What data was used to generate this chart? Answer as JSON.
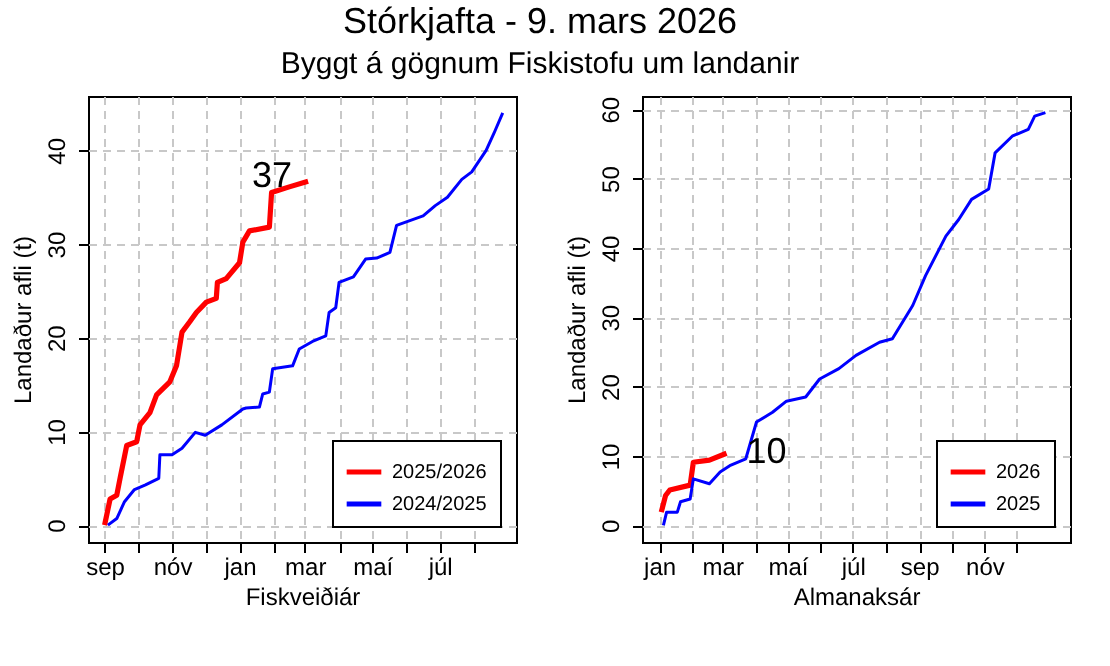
{
  "chart_data": [
    {
      "type": "line",
      "title": "Stórkjafta -  9. mars 2026",
      "subtitle": "Byggt á gögnum Fiskistofu um landanir",
      "xlabel": "Fiskveiðiár",
      "ylabel": "Landaður afli (t)",
      "xlim": [
        "2025-08-17",
        "2026-09-08"
      ],
      "xticks": [
        {
          "value": "2025-09-01",
          "label": "sep"
        },
        {
          "value": "2025-10-01",
          "label": null
        },
        {
          "value": "2025-11-01",
          "label": "nóv"
        },
        {
          "value": "2025-12-01",
          "label": null
        },
        {
          "value": "2026-01-01",
          "label": "jan"
        },
        {
          "value": "2026-02-01",
          "label": null
        },
        {
          "value": "2026-03-01",
          "label": "mar"
        },
        {
          "value": "2026-04-01",
          "label": null
        },
        {
          "value": "2026-05-01",
          "label": "maí"
        },
        {
          "value": "2026-06-01",
          "label": null
        },
        {
          "value": "2026-07-01",
          "label": "júl"
        },
        {
          "value": "2026-08-01",
          "label": null
        }
      ],
      "ylim": [
        -1.8,
        45.8
      ],
      "yticks": [
        0,
        10,
        20,
        30,
        40
      ],
      "grid": true,
      "legend": "bottom right",
      "marker": "none",
      "series": [
        {
          "name": "2025/2026",
          "color": "#ff0000",
          "x": [
            "2025-09-01",
            "2025-09-06",
            "2025-09-12",
            "2025-09-15",
            "2025-09-21",
            "2025-09-30",
            "2025-10-03",
            "2025-10-12",
            "2025-10-18",
            "2025-10-30",
            "2025-11-05",
            "2025-11-10",
            "2025-11-17",
            "2025-11-23",
            "2025-12-02",
            "2025-12-11",
            "2025-12-12",
            "2025-12-20",
            "2026-01-01",
            "2026-01-04",
            "2026-01-10",
            "2026-01-28",
            "2026-01-30",
            "2026-02-15",
            "2026-03-04"
          ],
          "values": [
            0,
            2.8,
            3.2,
            5,
            8.5,
            8.9,
            10.7,
            12,
            13.9,
            15.3,
            17,
            20.6,
            21.7,
            22.7,
            23.8,
            24.2,
            25.9,
            26.3,
            28,
            30.2,
            31.4,
            31.8,
            35.5,
            36.1,
            36.7
          ]
        },
        {
          "name": "2024/2025",
          "color": "#0000ff",
          "x": [
            "2025-09-04",
            "2025-09-12",
            "2025-09-19",
            "2025-09-28",
            "2025-10-08",
            "2025-10-20",
            "2025-10-21",
            "2025-11-01",
            "2025-11-10",
            "2025-11-22",
            "2025-12-01",
            "2025-12-16",
            "2026-01-04",
            "2026-01-07",
            "2026-01-19",
            "2026-01-22",
            "2026-01-28",
            "2026-01-31",
            "2026-02-18",
            "2026-02-24",
            "2026-03-08",
            "2026-03-20",
            "2026-03-23",
            "2026-03-29",
            "2026-04-01",
            "2026-04-14",
            "2026-04-25",
            "2026-05-05",
            "2026-05-17",
            "2026-05-23",
            "2026-06-16",
            "2026-06-27",
            "2026-07-08",
            "2026-07-21",
            "2026-07-30",
            "2026-08-12",
            "2026-08-19",
            "2026-08-27"
          ],
          "values": [
            0,
            0.7,
            2.5,
            3.8,
            4.3,
            5,
            7.5,
            7.5,
            8.2,
            9.9,
            9.6,
            10.7,
            12.4,
            12.5,
            12.6,
            14,
            14.2,
            16.7,
            17,
            18.8,
            19.6,
            20.2,
            22.7,
            23.2,
            25.9,
            26.5,
            28.4,
            28.5,
            29.1,
            32,
            33,
            34.1,
            35,
            36.9,
            37.7,
            40,
            41.8,
            44
          ]
        }
      ],
      "annotations": [
        {
          "text": "37",
          "x": "2026-03-04",
          "y": 36.7
        }
      ]
    },
    {
      "type": "line",
      "xlabel": "Almanaksár",
      "ylabel": "Landaður afli (t)",
      "xlim": [
        "2025-12-16",
        "2027-01-20"
      ],
      "xticks": [
        {
          "value": "2026-01-01",
          "label": "jan"
        },
        {
          "value": "2026-02-01",
          "label": null
        },
        {
          "value": "2026-03-01",
          "label": "mar"
        },
        {
          "value": "2026-04-01",
          "label": null
        },
        {
          "value": "2026-05-01",
          "label": "maí"
        },
        {
          "value": "2026-06-01",
          "label": null
        },
        {
          "value": "2026-07-01",
          "label": "júl"
        },
        {
          "value": "2026-08-01",
          "label": null
        },
        {
          "value": "2026-09-01",
          "label": "sep"
        },
        {
          "value": "2026-10-01",
          "label": null
        },
        {
          "value": "2026-11-01",
          "label": "nóv"
        },
        {
          "value": "2026-12-01",
          "label": null
        }
      ],
      "ylim": [
        -2.4,
        61.9
      ],
      "yticks": [
        0,
        10,
        20,
        30,
        40,
        50,
        60
      ],
      "grid": true,
      "legend": "bottom right",
      "marker": "none",
      "series": [
        {
          "name": "2026",
          "color": "#ff0000",
          "x": [
            "2026-01-03",
            "2026-01-07",
            "2026-01-11",
            "2026-01-30",
            "2026-02-02",
            "2026-02-17",
            "2026-03-05"
          ],
          "values": [
            1.9,
            4.3,
            5.1,
            5.8,
            9.1,
            9.4,
            10.4
          ]
        },
        {
          "name": "2025",
          "color": "#0000ff",
          "x": [
            "2026-01-05",
            "2026-01-08",
            "2026-01-18",
            "2026-01-21",
            "2026-01-30",
            "2026-02-02",
            "2026-02-17",
            "2026-02-27",
            "2026-03-08",
            "2026-03-23",
            "2026-04-02",
            "2026-04-17",
            "2026-04-30",
            "2026-05-18",
            "2026-05-31",
            "2026-06-18",
            "2026-07-04",
            "2026-07-26",
            "2026-08-07",
            "2026-08-26",
            "2026-09-07",
            "2026-09-26",
            "2026-10-08",
            "2026-10-20",
            "2026-11-05",
            "2026-11-11",
            "2026-11-27",
            "2026-12-12",
            "2026-12-18",
            "2026-12-28"
          ],
          "values": [
            0,
            1.9,
            1.9,
            3.4,
            3.8,
            6.7,
            6,
            7.7,
            8.6,
            9.6,
            14.9,
            16.3,
            17.9,
            18.5,
            21.1,
            22.6,
            24.5,
            26.4,
            26.9,
            31.7,
            36,
            41.7,
            44.1,
            47,
            48.5,
            53.7,
            56.1,
            57.1,
            59,
            59.5
          ]
        }
      ],
      "annotations": [
        {
          "text": "10",
          "x": "2026-03-05",
          "y": 10.4
        }
      ]
    }
  ]
}
